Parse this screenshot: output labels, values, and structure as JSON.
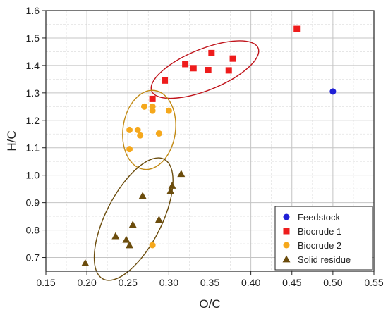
{
  "chart_data": {
    "type": "scatter",
    "xlabel": "O/C",
    "ylabel": "H/C",
    "xlim": [
      0.15,
      0.55
    ],
    "ylim": [
      0.65,
      1.6
    ],
    "x_ticks": [
      "0.15",
      "0.20",
      "0.25",
      "0.30",
      "0.35",
      "0.40",
      "0.45",
      "0.50",
      "0.55"
    ],
    "y_ticks": [
      "0.7",
      "0.8",
      "0.9",
      "1.0",
      "1.1",
      "1.2",
      "1.3",
      "1.4",
      "1.5",
      "1.6"
    ],
    "grid": true,
    "minor_grid": true,
    "legend_position": "bottom-right",
    "series": [
      {
        "name": "Feedstock",
        "marker": "circle",
        "color": "#1f1fd6",
        "points": [
          [
            0.5,
            1.305
          ]
        ]
      },
      {
        "name": "Biocrude 1",
        "marker": "square",
        "color": "#ee1c1c",
        "points": [
          [
            0.28,
            1.278
          ],
          [
            0.295,
            1.345
          ],
          [
            0.32,
            1.405
          ],
          [
            0.33,
            1.39
          ],
          [
            0.348,
            1.383
          ],
          [
            0.352,
            1.445
          ],
          [
            0.373,
            1.382
          ],
          [
            0.378,
            1.425
          ],
          [
            0.456,
            1.533
          ]
        ]
      },
      {
        "name": "Biocrude 2",
        "marker": "circle",
        "color": "#f5a81c",
        "points": [
          [
            0.27,
            1.25
          ],
          [
            0.28,
            1.25
          ],
          [
            0.28,
            1.235
          ],
          [
            0.3,
            1.235
          ],
          [
            0.252,
            1.165
          ],
          [
            0.262,
            1.165
          ],
          [
            0.265,
            1.145
          ],
          [
            0.288,
            1.152
          ],
          [
            0.252,
            1.095
          ],
          [
            0.28,
            0.745
          ]
        ]
      },
      {
        "name": "Solid residue",
        "marker": "triangle",
        "color": "#6b4c0c",
        "points": [
          [
            0.198,
            0.68
          ],
          [
            0.235,
            0.778
          ],
          [
            0.248,
            0.765
          ],
          [
            0.252,
            0.745
          ],
          [
            0.256,
            0.82
          ],
          [
            0.268,
            0.925
          ],
          [
            0.288,
            0.838
          ],
          [
            0.302,
            0.942
          ],
          [
            0.304,
            0.962
          ],
          [
            0.315,
            1.005
          ]
        ]
      }
    ],
    "ellipses": [
      {
        "color": "#c0141b",
        "cx": 0.344,
        "cy": 1.385,
        "rx": 0.07,
        "ry": 0.075,
        "angle_deg": -22
      },
      {
        "color": "#c28a14",
        "cx": 0.276,
        "cy": 1.165,
        "rx": 0.032,
        "ry": 0.145,
        "angle_deg": 8
      },
      {
        "color": "#6b4c0c",
        "cx": 0.257,
        "cy": 0.84,
        "rx": 0.034,
        "ry": 0.245,
        "angle_deg": 27
      }
    ]
  }
}
